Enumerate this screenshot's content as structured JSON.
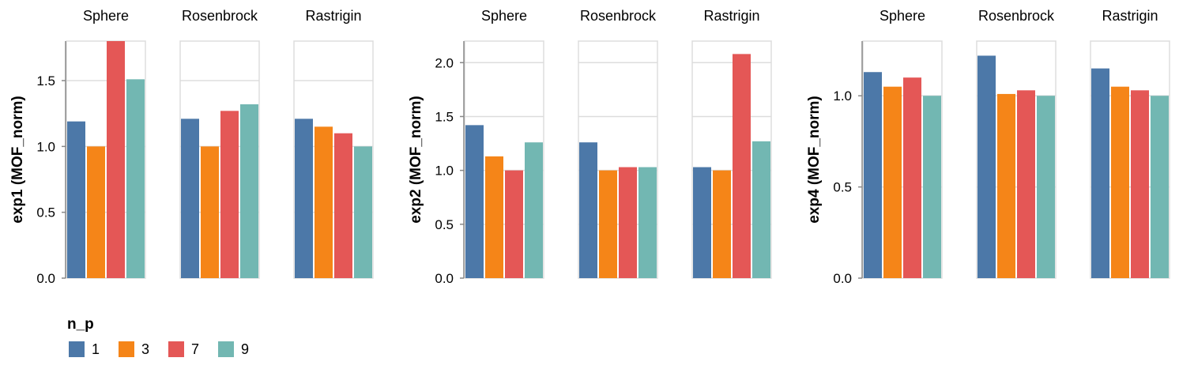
{
  "chart_data": {
    "type": "bar",
    "facet_titles": [
      "Sphere",
      "Rosenbrock",
      "Rastrigin"
    ],
    "grid": true,
    "legend": {
      "title": "n_p",
      "placement": "bottom-left",
      "entries": [
        {
          "label": "1",
          "color": "#4c78a8"
        },
        {
          "label": "3",
          "color": "#f58518"
        },
        {
          "label": "7",
          "color": "#e45756"
        },
        {
          "label": "9",
          "color": "#72b7b2"
        }
      ]
    },
    "rows": [
      {
        "ylabel": "exp1 (MOF_norm)",
        "ylim": [
          0,
          1.8
        ],
        "ticks": [
          "0.0",
          "0.5",
          "1.0",
          "1.5"
        ],
        "tick_values": [
          0,
          0.5,
          1.0,
          1.5
        ],
        "facets": [
          {
            "title": "Sphere",
            "values": [
              1.19,
              1.0,
              1.8,
              1.51
            ]
          },
          {
            "title": "Rosenbrock",
            "values": [
              1.21,
              1.0,
              1.27,
              1.32
            ]
          },
          {
            "title": "Rastrigin",
            "values": [
              1.21,
              1.15,
              1.1,
              1.0
            ]
          }
        ]
      },
      {
        "ylabel": "exp2 (MOF_norm)",
        "ylim": [
          0,
          2.2
        ],
        "ticks": [
          "0.0",
          "0.5",
          "1.0",
          "1.5",
          "2.0"
        ],
        "tick_values": [
          0,
          0.5,
          1.0,
          1.5,
          2.0
        ],
        "facets": [
          {
            "title": "Sphere",
            "values": [
              1.42,
              1.13,
              1.0,
              1.26
            ]
          },
          {
            "title": "Rosenbrock",
            "values": [
              1.26,
              1.0,
              1.03,
              1.03
            ]
          },
          {
            "title": "Rastrigin",
            "values": [
              1.03,
              1.0,
              2.08,
              1.27
            ]
          }
        ]
      },
      {
        "ylabel": "exp4 (MOF_norm)",
        "ylim": [
          0,
          1.3
        ],
        "ticks": [
          "0.0",
          "0.5",
          "1.0"
        ],
        "tick_values": [
          0,
          0.5,
          1.0
        ],
        "facets": [
          {
            "title": "Sphere",
            "values": [
              1.13,
              1.05,
              1.1,
              1.0
            ]
          },
          {
            "title": "Rosenbrock",
            "values": [
              1.22,
              1.01,
              1.03,
              1.0
            ]
          },
          {
            "title": "Rastrigin",
            "values": [
              1.15,
              1.05,
              1.03,
              1.0
            ]
          }
        ]
      }
    ]
  }
}
